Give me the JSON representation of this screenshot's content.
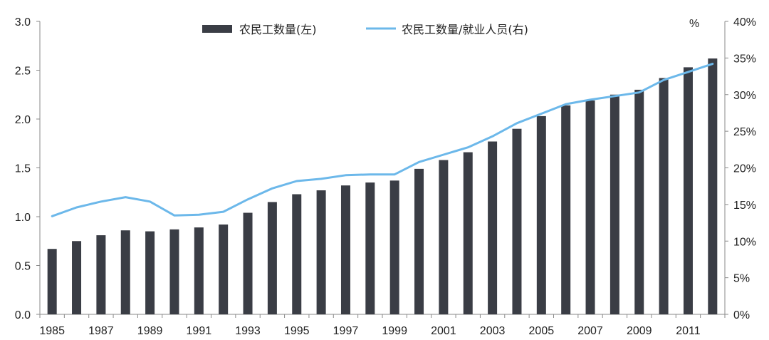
{
  "chart_data": {
    "type": "bar",
    "title": "",
    "xlabel": "",
    "ylabel": "",
    "y2label": "%",
    "categories": [
      "1985",
      "1986",
      "1987",
      "1988",
      "1989",
      "1990",
      "1991",
      "1992",
      "1993",
      "1994",
      "1995",
      "1996",
      "1997",
      "1998",
      "1999",
      "2000",
      "2001",
      "2002",
      "2003",
      "2004",
      "2005",
      "2006",
      "2007",
      "2008",
      "2009",
      "2010",
      "2011",
      "2012"
    ],
    "x_tick_labels": [
      "1985",
      "1987",
      "1989",
      "1991",
      "1993",
      "1995",
      "1997",
      "1999",
      "2001",
      "2003",
      "2005",
      "2007",
      "2009",
      "2011"
    ],
    "ylim": [
      0,
      3.0
    ],
    "y_ticks": [
      "0.0",
      "0.5",
      "1.0",
      "1.5",
      "2.0",
      "2.5",
      "3.0"
    ],
    "y2lim": [
      0,
      40
    ],
    "y2_ticks": [
      "0%",
      "5%",
      "10%",
      "15%",
      "20%",
      "25%",
      "30%",
      "35%",
      "40%"
    ],
    "grid": false,
    "legend_position": "top-center",
    "series": [
      {
        "name": "农民工数量(左)",
        "type": "bar",
        "axis": "left",
        "color": "#3a3d45",
        "values": [
          0.67,
          0.75,
          0.81,
          0.86,
          0.85,
          0.87,
          0.89,
          0.92,
          1.04,
          1.15,
          1.23,
          1.27,
          1.32,
          1.35,
          1.37,
          1.49,
          1.58,
          1.66,
          1.77,
          1.9,
          2.03,
          2.14,
          2.19,
          2.25,
          2.3,
          2.42,
          2.53,
          2.62
        ]
      },
      {
        "name": "农民工数量/就业人员(右)",
        "type": "line",
        "axis": "right",
        "color": "#6cb8ea",
        "values": [
          13.4,
          14.6,
          15.4,
          16.0,
          15.4,
          13.5,
          13.6,
          14.0,
          15.7,
          17.2,
          18.2,
          18.5,
          19.0,
          19.1,
          19.1,
          20.8,
          21.8,
          22.8,
          24.3,
          26.1,
          27.4,
          28.7,
          29.3,
          29.8,
          30.3,
          32.0,
          33.1,
          34.2
        ]
      }
    ]
  }
}
